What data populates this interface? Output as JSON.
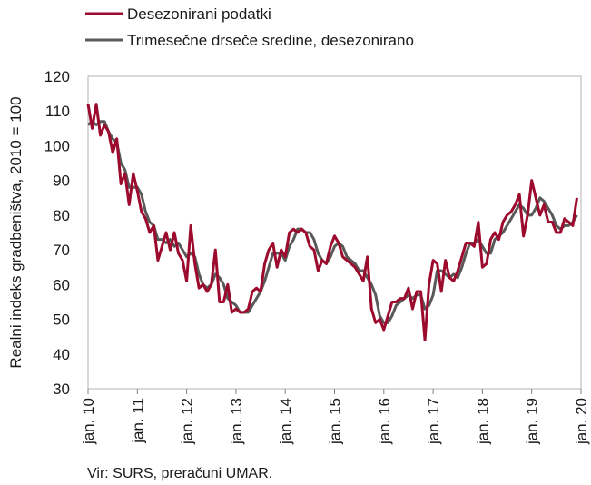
{
  "chart_data": {
    "type": "line",
    "title": "",
    "xlabel": "",
    "ylabel": "Realni indeks gradbeništva, 2010 = 100",
    "ylim": [
      30,
      120
    ],
    "yticks": [
      30,
      40,
      50,
      60,
      70,
      80,
      90,
      100,
      110,
      120
    ],
    "xlim": [
      0,
      120
    ],
    "grid": false,
    "legend_position": "top-left",
    "xticks": [
      {
        "x": 0,
        "label": "jan. 10"
      },
      {
        "x": 12,
        "label": "jan. 11"
      },
      {
        "x": 24,
        "label": "jan. 12"
      },
      {
        "x": 36,
        "label": "jan. 13"
      },
      {
        "x": 48,
        "label": "jan. 14"
      },
      {
        "x": 60,
        "label": "jan. 15"
      },
      {
        "x": 72,
        "label": "jan. 16"
      },
      {
        "x": 84,
        "label": "jan. 17"
      },
      {
        "x": 96,
        "label": "jan. 18"
      },
      {
        "x": 108,
        "label": "jan. 19"
      },
      {
        "x": 120,
        "label": "jan. 20"
      }
    ],
    "series": [
      {
        "name": "Desezonirani podatki",
        "color": "#9c0a2d",
        "values": [
          112,
          105,
          112,
          103,
          106,
          104,
          98,
          102,
          89,
          92,
          83,
          92,
          87,
          81,
          79,
          75,
          77,
          67,
          71,
          75,
          70,
          75,
          69,
          67,
          61,
          77,
          66,
          59,
          60,
          58,
          60,
          70,
          55,
          55,
          60,
          52,
          53,
          52,
          52,
          53,
          58,
          59,
          58,
          66,
          70,
          72,
          65,
          70,
          68,
          75,
          76,
          75,
          76,
          75,
          71,
          70,
          64,
          67,
          66,
          71,
          74,
          72,
          68,
          67,
          66,
          65,
          63,
          61,
          68,
          53,
          49,
          50,
          47,
          51,
          55,
          55,
          56,
          56,
          59,
          53,
          58,
          58,
          44,
          60,
          67,
          66,
          58,
          67,
          62,
          61,
          64,
          68,
          72,
          72,
          71,
          78,
          65,
          66,
          73,
          75,
          73,
          78,
          80,
          81,
          83,
          86,
          74,
          80,
          90,
          85,
          80,
          83,
          78,
          78,
          75,
          75,
          79,
          78,
          77,
          85
        ]
      },
      {
        "name": "Trimesečne drseče sredine, desezonirano",
        "color": "#595959",
        "values": [
          106,
          107,
          106,
          107,
          107,
          104,
          102,
          101,
          95,
          93,
          88,
          88,
          88,
          86,
          81,
          78,
          77,
          73,
          73,
          72,
          73,
          71,
          72,
          70,
          68,
          69,
          68,
          63,
          60,
          59,
          60,
          63,
          62,
          60,
          56,
          55,
          54,
          52,
          52,
          52,
          54,
          56,
          58,
          61,
          65,
          69,
          69,
          69,
          67,
          71,
          73,
          76,
          76,
          75,
          75,
          73,
          69,
          67,
          66,
          68,
          71,
          72,
          71,
          68,
          67,
          66,
          64,
          64,
          62,
          60,
          57,
          51,
          49,
          49,
          51,
          54,
          55,
          56,
          57,
          56,
          57,
          57,
          53,
          54,
          57,
          64,
          64,
          63,
          62,
          63,
          62,
          65,
          69,
          72,
          72,
          73,
          71,
          69,
          69,
          73,
          74,
          75,
          77,
          79,
          81,
          83,
          82,
          80,
          80,
          82,
          85,
          84,
          82,
          80,
          77,
          76,
          77,
          77,
          78,
          80
        ]
      }
    ]
  },
  "source_note": "Vir: SURS, preračuni UMAR."
}
